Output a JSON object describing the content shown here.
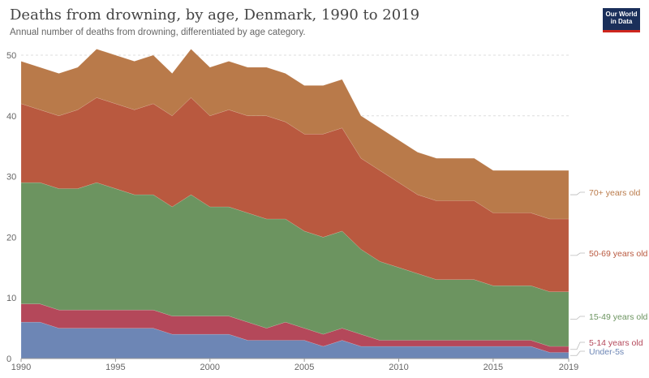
{
  "header": {
    "title": "Deaths from drowning, by age, Denmark, 1990 to 2019",
    "subtitle": "Annual number of deaths from drowning, differentiated by age category.",
    "logo_line1": "Our World",
    "logo_line2": "in Data"
  },
  "chart_data": {
    "type": "area",
    "stacked": true,
    "title": "Deaths from drowning, by age, Denmark, 1990 to 2019",
    "subtitle": "Annual number of deaths from drowning, differentiated by age category.",
    "x": [
      1990,
      1991,
      1992,
      1993,
      1994,
      1995,
      1996,
      1997,
      1998,
      1999,
      2000,
      2001,
      2002,
      2003,
      2004,
      2005,
      2006,
      2007,
      2008,
      2009,
      2010,
      2011,
      2012,
      2013,
      2014,
      2015,
      2016,
      2017,
      2018,
      2019
    ],
    "xticks": [
      "1990",
      "1995",
      "2000",
      "2005",
      "2010",
      "2015",
      "2019"
    ],
    "yticks": [
      "0",
      "10",
      "20",
      "30",
      "40",
      "50"
    ],
    "ylim": [
      0,
      50
    ],
    "grid": true,
    "legend": "right, inline labels",
    "series": [
      {
        "name": "Under-5s",
        "color": "#6d86b5",
        "values": [
          6,
          6,
          5,
          5,
          5,
          5,
          5,
          5,
          4,
          4,
          4,
          4,
          3,
          3,
          3,
          3,
          2,
          3,
          2,
          2,
          2,
          2,
          2,
          2,
          2,
          2,
          2,
          2,
          1,
          1
        ]
      },
      {
        "name": "5-14 years old",
        "color": "#b4485a",
        "values": [
          3,
          3,
          3,
          3,
          3,
          3,
          3,
          3,
          3,
          3,
          3,
          3,
          3,
          2,
          3,
          2,
          2,
          2,
          2,
          1,
          1,
          1,
          1,
          1,
          1,
          1,
          1,
          1,
          1,
          1
        ]
      },
      {
        "name": "15-49 years old",
        "color": "#6c9460",
        "values": [
          20,
          20,
          20,
          20,
          21,
          20,
          19,
          19,
          18,
          20,
          18,
          18,
          18,
          18,
          17,
          16,
          16,
          16,
          14,
          13,
          12,
          11,
          10,
          10,
          10,
          9,
          9,
          9,
          9,
          9
        ]
      },
      {
        "name": "50-69 years old",
        "color": "#b9593f",
        "values": [
          13,
          12,
          12,
          13,
          14,
          14,
          14,
          15,
          15,
          16,
          15,
          16,
          16,
          17,
          16,
          16,
          17,
          17,
          15,
          15,
          14,
          13,
          13,
          13,
          13,
          12,
          12,
          12,
          12,
          12
        ]
      },
      {
        "name": "70+ years old",
        "color": "#b97a4a",
        "values": [
          7,
          7,
          7,
          7,
          8,
          8,
          8,
          8,
          7,
          8,
          8,
          8,
          8,
          8,
          8,
          8,
          8,
          8,
          7,
          7,
          7,
          7,
          7,
          7,
          7,
          7,
          7,
          7,
          8,
          8
        ]
      }
    ]
  }
}
